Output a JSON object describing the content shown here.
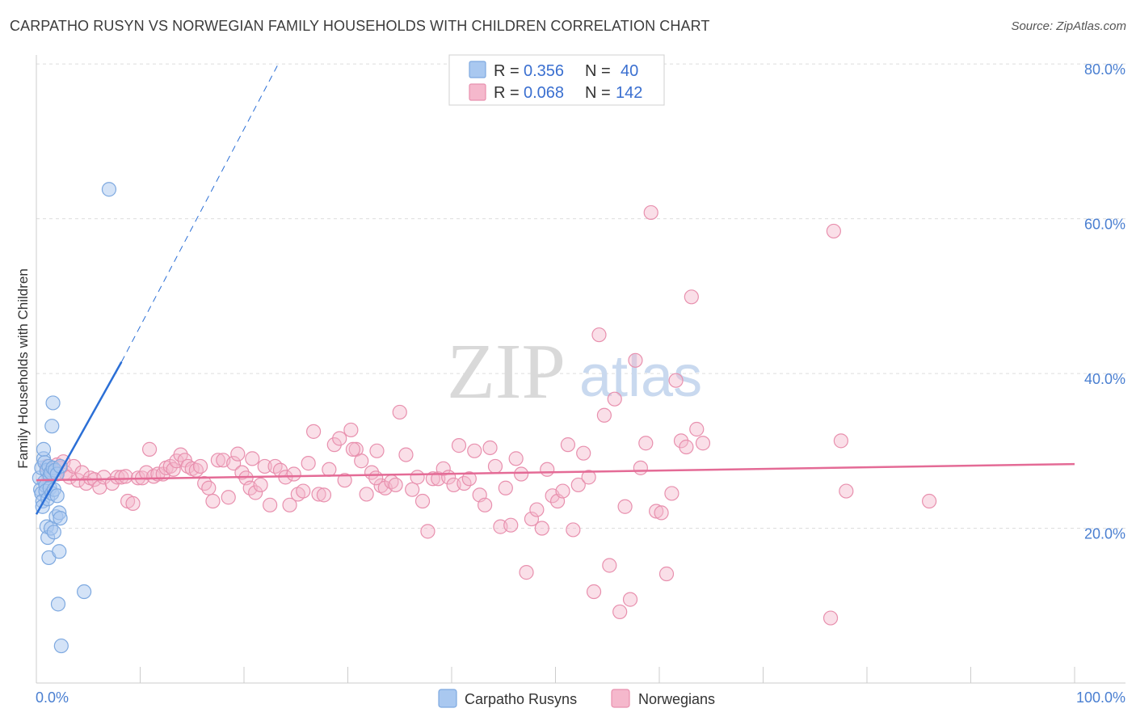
{
  "title": "CARPATHO RUSYN VS NORWEGIAN FAMILY HOUSEHOLDS WITH CHILDREN CORRELATION CHART",
  "source": "Source: ZipAtlas.com",
  "watermark": {
    "zip": "ZIP",
    "atlas": "atlas"
  },
  "colors": {
    "blue_fill": "#a9c8f0",
    "blue_stroke": "#7ea9e0",
    "blue_line": "#2b6fd6",
    "pink_fill": "#f5b8cc",
    "pink_stroke": "#e890ae",
    "pink_line": "#e46b96",
    "grid": "#dddddd",
    "axis": "#cccccc",
    "tick_text": "#4a7fd1"
  },
  "legend": {
    "rows": [
      {
        "r_label": "R =",
        "r_value": "0.356",
        "n_label": "N =",
        "n_value": "40"
      },
      {
        "r_label": "R =",
        "r_value": "0.068",
        "n_label": "N =",
        "n_value": "142"
      }
    ]
  },
  "bottom_legend": {
    "items": [
      "Carpatho Rusyns",
      "Norwegians"
    ]
  },
  "chart_data": {
    "type": "scatter",
    "title": "CARPATHO RUSYN VS NORWEGIAN FAMILY HOUSEHOLDS WITH CHILDREN CORRELATION CHART",
    "xlabel": "",
    "ylabel": "Family Households with Children",
    "xlim": [
      0,
      100
    ],
    "ylim": [
      0,
      82
    ],
    "x_tick_labels": [
      "0.0%",
      "100.0%"
    ],
    "y_ticks": [
      20,
      40,
      60,
      80
    ],
    "y_tick_labels": [
      "20.0%",
      "40.0%",
      "60.0%",
      "80.0%"
    ],
    "grid": true,
    "series": [
      {
        "name": "Carpatho Rusyns",
        "r": 0.356,
        "n": 40,
        "trend": {
          "x0": 0,
          "y0": 21.8,
          "x1": 8.2,
          "y1": 41.5,
          "dash_x1": 23.3,
          "dash_y1": 80
        },
        "points": [
          [
            0.3,
            26.5
          ],
          [
            0.4,
            25.0
          ],
          [
            0.5,
            27.8
          ],
          [
            0.5,
            24.5
          ],
          [
            0.6,
            23.5
          ],
          [
            0.6,
            22.8
          ],
          [
            0.7,
            29.0
          ],
          [
            0.7,
            30.2
          ],
          [
            0.8,
            28.5
          ],
          [
            0.8,
            26.0
          ],
          [
            0.9,
            25.5
          ],
          [
            0.9,
            24.8
          ],
          [
            1.0,
            27.5
          ],
          [
            1.0,
            20.2
          ],
          [
            1.1,
            23.8
          ],
          [
            1.1,
            18.8
          ],
          [
            1.2,
            28.0
          ],
          [
            1.2,
            16.2
          ],
          [
            1.3,
            26.8
          ],
          [
            1.3,
            25.2
          ],
          [
            1.4,
            27.2
          ],
          [
            1.4,
            20.0
          ],
          [
            1.5,
            24.5
          ],
          [
            1.5,
            33.2
          ],
          [
            1.6,
            27.8
          ],
          [
            1.6,
            36.2
          ],
          [
            1.7,
            19.5
          ],
          [
            1.7,
            25.0
          ],
          [
            1.8,
            27.5
          ],
          [
            1.9,
            21.5
          ],
          [
            2.0,
            24.2
          ],
          [
            2.0,
            27.0
          ],
          [
            2.1,
            10.2
          ],
          [
            2.2,
            22.0
          ],
          [
            2.2,
            17.0
          ],
          [
            2.3,
            21.3
          ],
          [
            2.3,
            28.0
          ],
          [
            2.4,
            4.8
          ],
          [
            4.6,
            11.8
          ],
          [
            7.0,
            63.8
          ]
        ]
      },
      {
        "name": "Norwegians",
        "r": 0.068,
        "n": 142,
        "trend": {
          "x0": 0,
          "y0": 26.2,
          "x1": 100,
          "y1": 28.3
        },
        "points": [
          [
            1.0,
            28.0
          ],
          [
            1.2,
            26.5
          ],
          [
            1.5,
            27.5
          ],
          [
            1.8,
            27.0
          ],
          [
            2.0,
            28.2
          ],
          [
            2.3,
            27.8
          ],
          [
            2.6,
            28.6
          ],
          [
            2.8,
            27.2
          ],
          [
            3.2,
            26.6
          ],
          [
            3.6,
            28.0
          ],
          [
            4.0,
            26.2
          ],
          [
            4.4,
            27.2
          ],
          [
            4.8,
            25.8
          ],
          [
            5.2,
            26.5
          ],
          [
            5.6,
            26.3
          ],
          [
            6.1,
            25.3
          ],
          [
            6.5,
            26.6
          ],
          [
            7.3,
            25.8
          ],
          [
            7.8,
            26.6
          ],
          [
            8.2,
            26.6
          ],
          [
            8.6,
            26.7
          ],
          [
            8.8,
            23.5
          ],
          [
            9.3,
            23.2
          ],
          [
            9.8,
            26.5
          ],
          [
            10.2,
            26.5
          ],
          [
            10.6,
            27.2
          ],
          [
            10.9,
            30.2
          ],
          [
            11.3,
            26.7
          ],
          [
            11.7,
            27.0
          ],
          [
            12.2,
            27.0
          ],
          [
            12.5,
            27.8
          ],
          [
            12.9,
            28.0
          ],
          [
            13.2,
            27.6
          ],
          [
            13.5,
            28.7
          ],
          [
            13.9,
            29.5
          ],
          [
            14.3,
            28.8
          ],
          [
            14.6,
            28.0
          ],
          [
            15.0,
            27.7
          ],
          [
            15.4,
            27.5
          ],
          [
            15.8,
            28.0
          ],
          [
            16.2,
            25.8
          ],
          [
            16.6,
            25.2
          ],
          [
            17.0,
            23.5
          ],
          [
            17.5,
            28.8
          ],
          [
            18.0,
            28.8
          ],
          [
            18.5,
            24.0
          ],
          [
            19.0,
            28.4
          ],
          [
            19.4,
            29.6
          ],
          [
            19.8,
            27.2
          ],
          [
            20.2,
            26.5
          ],
          [
            20.6,
            25.2
          ],
          [
            21.1,
            24.6
          ],
          [
            21.6,
            25.6
          ],
          [
            22.0,
            28.0
          ],
          [
            22.5,
            23.0
          ],
          [
            23.0,
            28.0
          ],
          [
            23.5,
            27.5
          ],
          [
            24.0,
            26.6
          ],
          [
            24.4,
            23.0
          ],
          [
            24.8,
            27.0
          ],
          [
            25.2,
            24.4
          ],
          [
            25.7,
            24.8
          ],
          [
            26.2,
            28.4
          ],
          [
            26.7,
            32.5
          ],
          [
            27.2,
            24.4
          ],
          [
            27.7,
            24.3
          ],
          [
            28.2,
            27.6
          ],
          [
            28.7,
            30.8
          ],
          [
            29.2,
            31.6
          ],
          [
            29.7,
            26.2
          ],
          [
            30.3,
            32.7
          ],
          [
            30.8,
            30.2
          ],
          [
            31.3,
            28.7
          ],
          [
            31.8,
            24.4
          ],
          [
            32.3,
            27.2
          ],
          [
            32.8,
            30.0
          ],
          [
            33.2,
            25.5
          ],
          [
            33.6,
            25.2
          ],
          [
            34.2,
            26.0
          ],
          [
            34.6,
            25.6
          ],
          [
            35.0,
            35.0
          ],
          [
            35.6,
            29.5
          ],
          [
            36.2,
            25.0
          ],
          [
            36.7,
            26.6
          ],
          [
            37.2,
            23.5
          ],
          [
            37.7,
            19.6
          ],
          [
            38.2,
            26.4
          ],
          [
            38.7,
            26.4
          ],
          [
            39.2,
            27.7
          ],
          [
            39.7,
            26.6
          ],
          [
            40.2,
            25.6
          ],
          [
            40.7,
            30.7
          ],
          [
            41.2,
            25.8
          ],
          [
            41.7,
            26.4
          ],
          [
            42.2,
            30.0
          ],
          [
            42.7,
            24.3
          ],
          [
            43.2,
            23.0
          ],
          [
            43.7,
            30.4
          ],
          [
            44.2,
            28.0
          ],
          [
            44.7,
            20.2
          ],
          [
            45.2,
            25.2
          ],
          [
            45.7,
            20.4
          ],
          [
            46.2,
            29.0
          ],
          [
            46.7,
            27.0
          ],
          [
            47.2,
            14.3
          ],
          [
            47.7,
            21.2
          ],
          [
            48.2,
            22.4
          ],
          [
            48.7,
            20.0
          ],
          [
            49.2,
            27.6
          ],
          [
            49.7,
            24.2
          ],
          [
            50.2,
            23.5
          ],
          [
            50.7,
            24.8
          ],
          [
            51.2,
            30.8
          ],
          [
            51.7,
            19.8
          ],
          [
            52.2,
            25.6
          ],
          [
            52.7,
            29.7
          ],
          [
            53.2,
            26.6
          ],
          [
            53.7,
            11.8
          ],
          [
            54.2,
            45.0
          ],
          [
            54.7,
            34.6
          ],
          [
            55.2,
            15.2
          ],
          [
            55.7,
            36.7
          ],
          [
            56.2,
            9.2
          ],
          [
            56.7,
            22.8
          ],
          [
            57.2,
            10.8
          ],
          [
            57.7,
            41.7
          ],
          [
            58.2,
            27.8
          ],
          [
            58.7,
            31.0
          ],
          [
            59.2,
            60.8
          ],
          [
            59.7,
            22.2
          ],
          [
            60.2,
            22.0
          ],
          [
            60.7,
            14.1
          ],
          [
            61.2,
            24.5
          ],
          [
            61.6,
            39.1
          ],
          [
            62.1,
            31.3
          ],
          [
            62.6,
            30.5
          ],
          [
            63.1,
            49.9
          ],
          [
            63.6,
            32.8
          ],
          [
            76.5,
            8.4
          ],
          [
            76.8,
            58.4
          ],
          [
            64.2,
            31.0
          ],
          [
            77.5,
            31.3
          ],
          [
            78.0,
            24.8
          ],
          [
            86.0,
            23.5
          ],
          [
            32.7,
            26.5
          ],
          [
            30.5,
            30.2
          ],
          [
            20.8,
            29.0
          ]
        ]
      }
    ]
  }
}
